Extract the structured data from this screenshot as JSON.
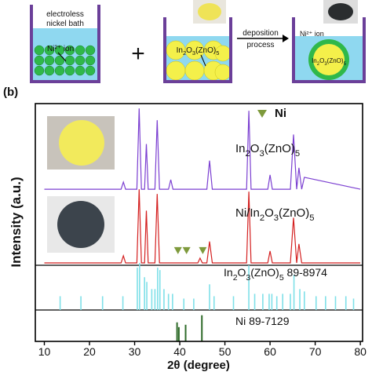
{
  "schematic": {
    "bath_label": [
      "electroless",
      "nickel bath"
    ],
    "ion_label_1": "Ni²⁺ ion",
    "plus": "+",
    "powder_label": "In2O3(ZnO)5",
    "process_label": [
      "deposition",
      "process"
    ],
    "ion_label_2": "Ni²⁺ ion",
    "particle_label": "In2O3(ZnO)5"
  },
  "chart_data": {
    "type": "xrd",
    "panel_label": "(b)",
    "ylabel": "Intensity (a.u.)",
    "xlabel": "2θ (degree)",
    "xlim": [
      8,
      80.5
    ],
    "ylim": [
      0,
      100
    ],
    "xticks": [
      10,
      20,
      30,
      40,
      50,
      60,
      70,
      80
    ],
    "series": [
      {
        "name": "In2O3(ZnO)5",
        "kind": "pattern",
        "color": "#7b3fd1",
        "x": [
          10,
          27,
          27.5,
          28,
          30.5,
          31,
          31.5,
          32.2,
          32.6,
          33,
          34.5,
          35,
          35.5,
          36,
          37.5,
          38,
          38.5,
          46,
          46.6,
          47.2,
          54.8,
          55.3,
          55.8,
          59.5,
          60,
          60.5,
          64.5,
          65.2,
          65.9,
          66.4,
          67,
          67.6,
          80
        ],
        "values": [
          64,
          64,
          67,
          64,
          64,
          98,
          64,
          64,
          83,
          64,
          64,
          93,
          64,
          64,
          64,
          68,
          64,
          64,
          76,
          64,
          64,
          97,
          64,
          64,
          70,
          64,
          64,
          87,
          64,
          73,
          64,
          69,
          64
        ]
      },
      {
        "name": "Ni/In2O3(ZnO)5",
        "kind": "pattern",
        "color": "#d42020",
        "x": [
          10,
          27,
          27.5,
          28,
          30.5,
          31,
          31.5,
          32.2,
          32.6,
          33,
          34.5,
          35,
          35.5,
          36,
          44,
          44.5,
          45,
          46,
          46.6,
          47.2,
          54.8,
          55.3,
          55.8,
          59.5,
          60,
          60.5,
          64.5,
          65.2,
          65.9,
          66.4,
          67,
          80
        ],
        "values": [
          33,
          33,
          36,
          33,
          33,
          64,
          33,
          33,
          55,
          33,
          33,
          62,
          33,
          33,
          33,
          35,
          33,
          33,
          42,
          33,
          33,
          63,
          33,
          33,
          38,
          33,
          33,
          52,
          33,
          41,
          33,
          33
        ]
      },
      {
        "name": "Ni",
        "kind": "marker",
        "color": "#7e9a3c",
        "x": [
          39.6,
          41.5,
          45.1
        ],
        "values": [
          38,
          38,
          38
        ]
      },
      {
        "name": "In2O3(ZnO)5 89-8974",
        "kind": "sticks",
        "color": "#7fe0e8",
        "x": [
          13.5,
          18.1,
          22.9,
          27.4,
          30.6,
          31.1,
          32.2,
          32.7,
          33.8,
          34.5,
          35.1,
          35.6,
          36.5,
          37.5,
          38.4,
          40.9,
          43.1,
          46.6,
          47.6,
          51.9,
          55.3,
          56.6,
          58.4,
          59.8,
          60.4,
          61.5,
          62.8,
          64.5,
          65.3,
          66.6,
          67.6,
          70.2,
          72.3,
          74.5,
          76.8,
          78.5
        ],
        "values": [
          19,
          19,
          19,
          19,
          31,
          33,
          27,
          25,
          22,
          22,
          31,
          30,
          22,
          20,
          20,
          18,
          18,
          24,
          19,
          19,
          32,
          20,
          20,
          20,
          20,
          19,
          20,
          20,
          28,
          22,
          21,
          19,
          19,
          19,
          19,
          18
        ]
      },
      {
        "name": "Ni 89-7129",
        "kind": "sticks",
        "color": "#2f6b2a",
        "x": [
          39.4,
          39.8,
          41.3,
          44.9
        ],
        "values": [
          8,
          6,
          7,
          11
        ]
      }
    ]
  }
}
